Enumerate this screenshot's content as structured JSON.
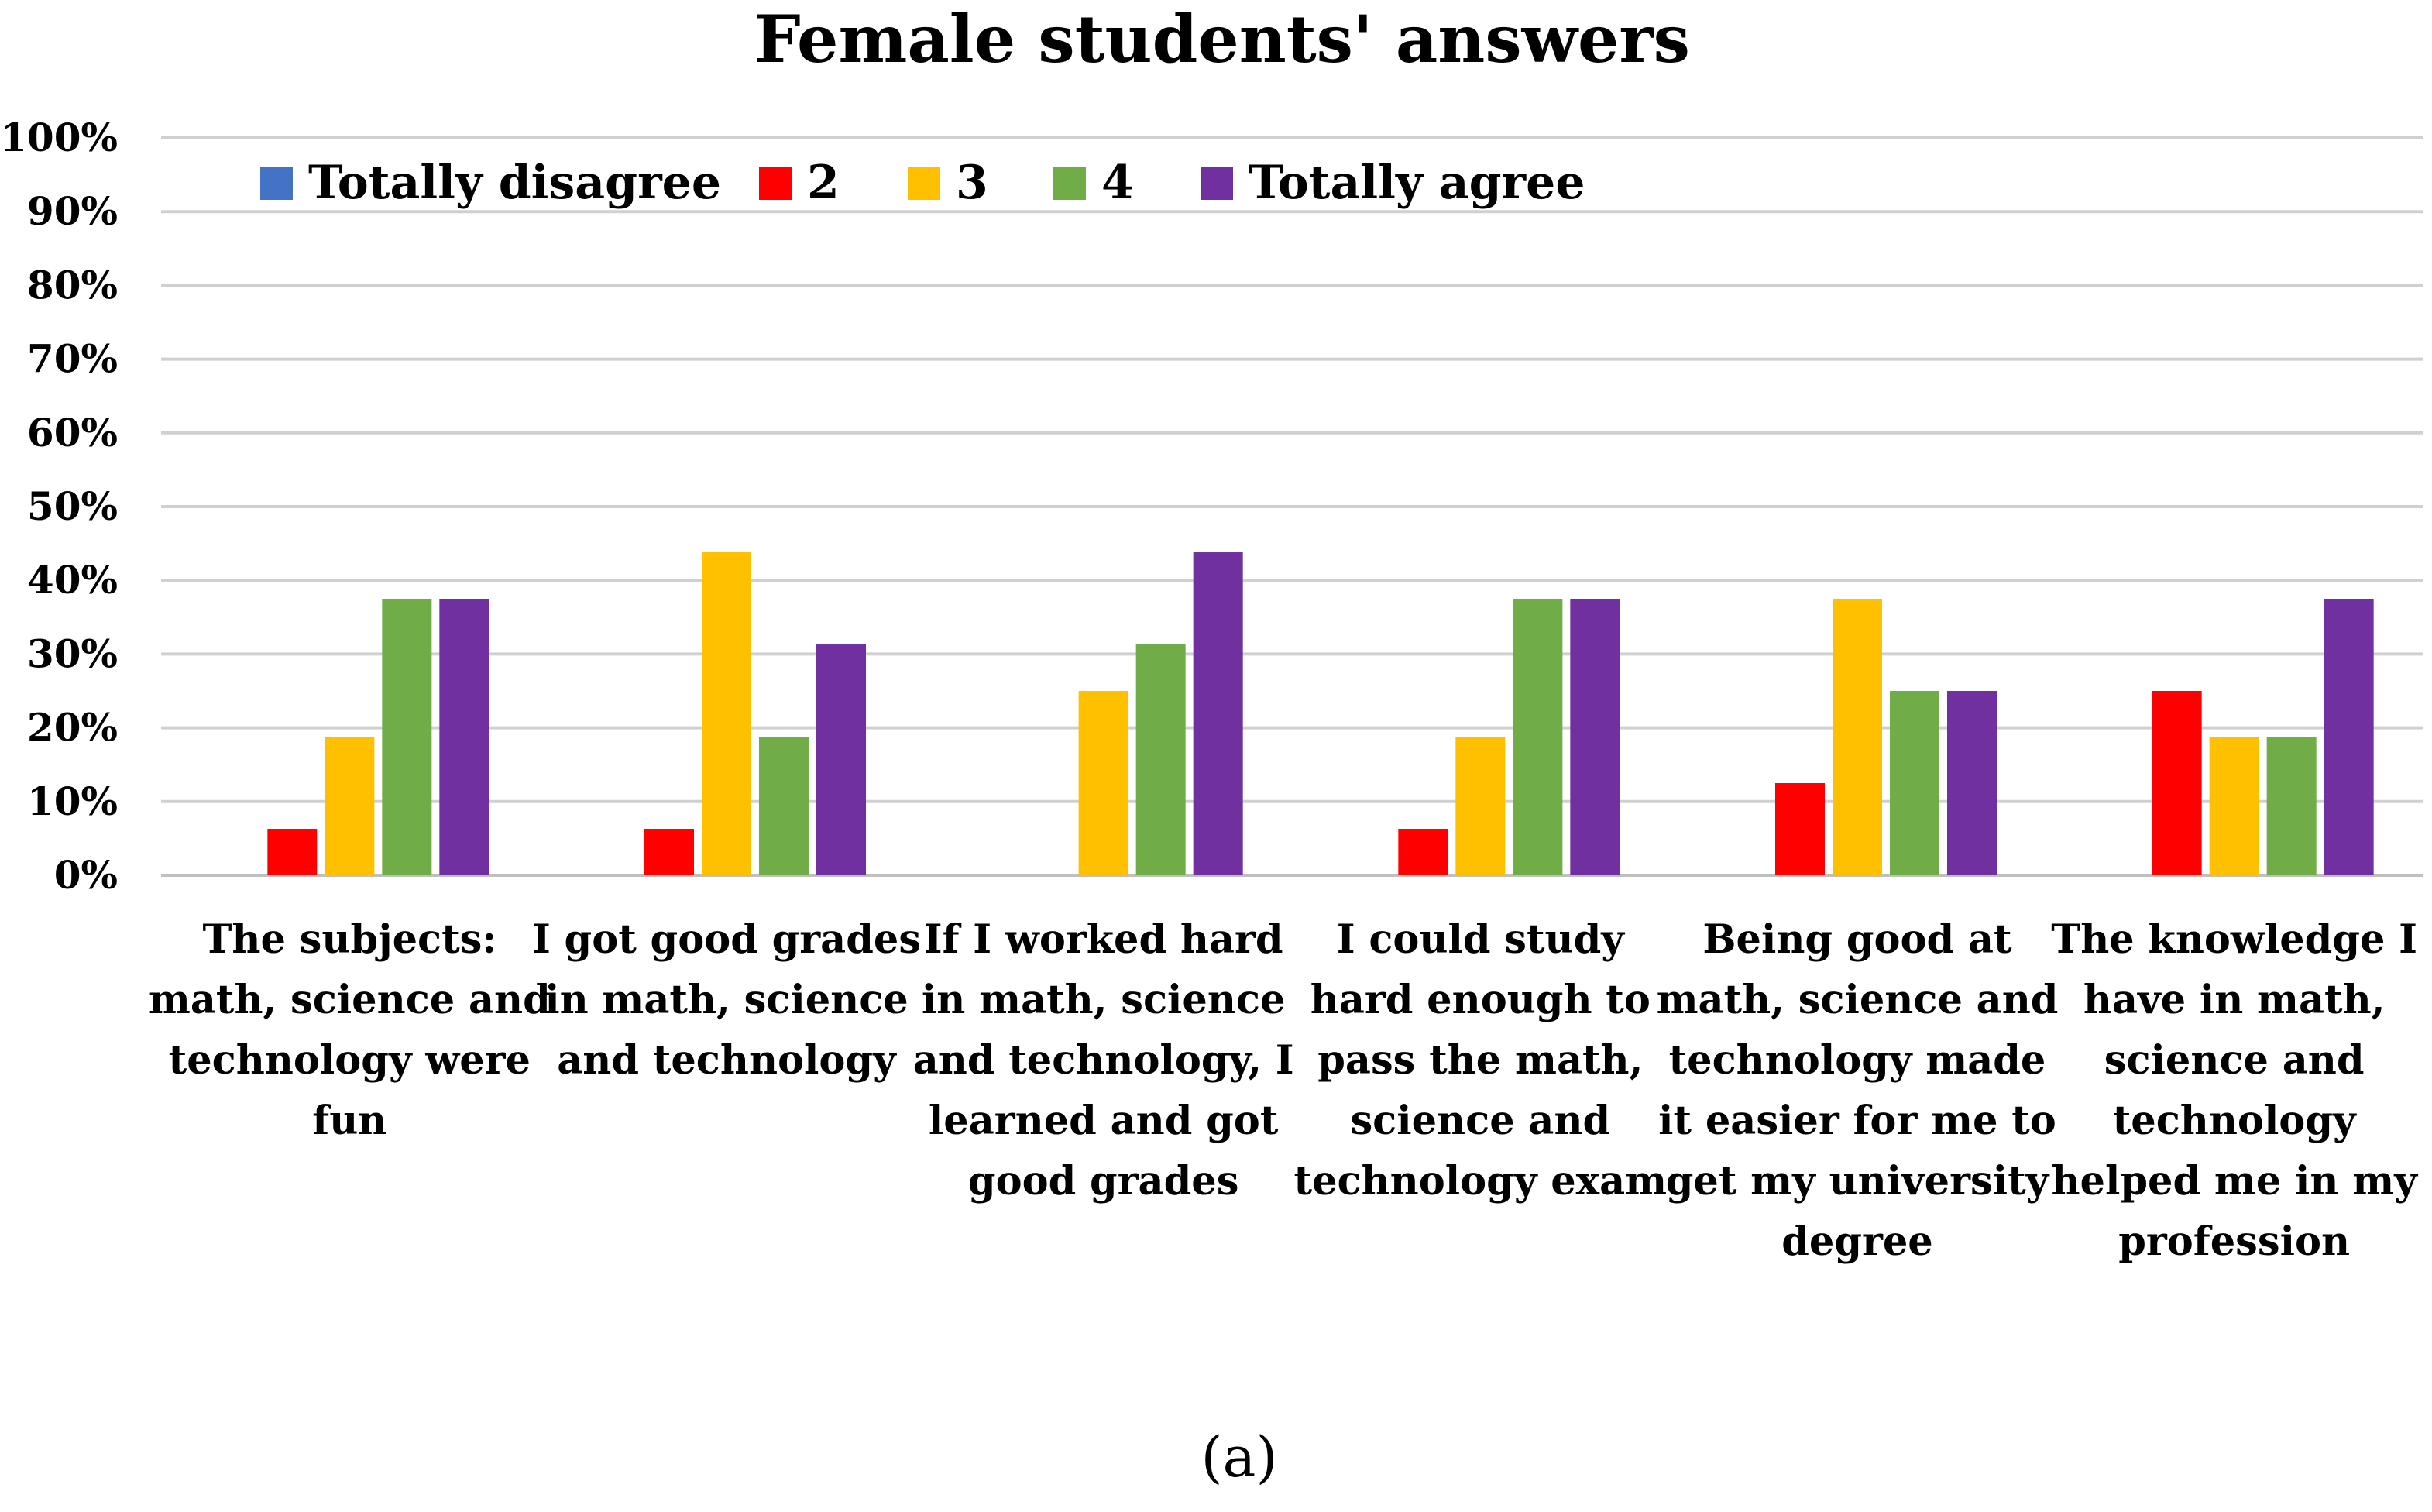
{
  "chart_data": {
    "type": "bar",
    "title": "Female students' answers",
    "caption": "(a)",
    "xlabel": "",
    "ylabel": "",
    "ylim": [
      0,
      100
    ],
    "y_ticks": [
      "0%",
      "10%",
      "20%",
      "30%",
      "40%",
      "50%",
      "60%",
      "70%",
      "80%",
      "90%",
      "100%"
    ],
    "grid": true,
    "legend_position": "top-left",
    "categories": [
      [
        "The subjects:",
        "math, science and",
        "technology were",
        "fun"
      ],
      [
        "I got good grades",
        "in math, science",
        "and technology"
      ],
      [
        "If I worked hard",
        "in math, science",
        "and technology, I",
        "learned and got",
        "good grades"
      ],
      [
        "I could study",
        "hard enough to",
        "pass the math,",
        "science and",
        "technology exam"
      ],
      [
        "Being good at",
        "math, science and",
        "technology made",
        "it easier for me to",
        "get my university",
        "degree"
      ],
      [
        "The knowledge I",
        "have in math,",
        "science and",
        "technology",
        "helped me in my",
        "profession"
      ]
    ],
    "series": [
      {
        "name": "Totally disagree",
        "color": "#4472c4",
        "values": [
          0,
          0,
          0,
          0,
          0,
          0
        ]
      },
      {
        "name": "2",
        "color": "#ff0000",
        "values": [
          6.3,
          6.3,
          0,
          6.3,
          12.5,
          25
        ]
      },
      {
        "name": "3",
        "color": "#ffc000",
        "values": [
          18.8,
          43.8,
          25,
          18.8,
          37.5,
          18.8
        ]
      },
      {
        "name": "4",
        "color": "#70ad47",
        "values": [
          37.5,
          18.8,
          31.3,
          37.5,
          25,
          18.8
        ]
      },
      {
        "name": "Totally agree",
        "color": "#7030a0",
        "values": [
          37.5,
          31.3,
          43.8,
          37.5,
          25,
          37.5
        ]
      }
    ]
  }
}
